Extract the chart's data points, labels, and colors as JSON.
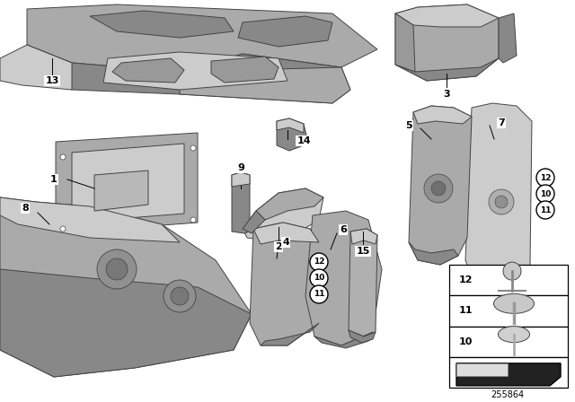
{
  "background_color": "#ffffff",
  "diagram_number": "255864",
  "part_color_main": "#aaaaaa",
  "part_color_dark": "#888888",
  "part_color_light": "#cccccc",
  "part_color_darker": "#707070",
  "outline_color": "#444444",
  "lw": 0.7
}
